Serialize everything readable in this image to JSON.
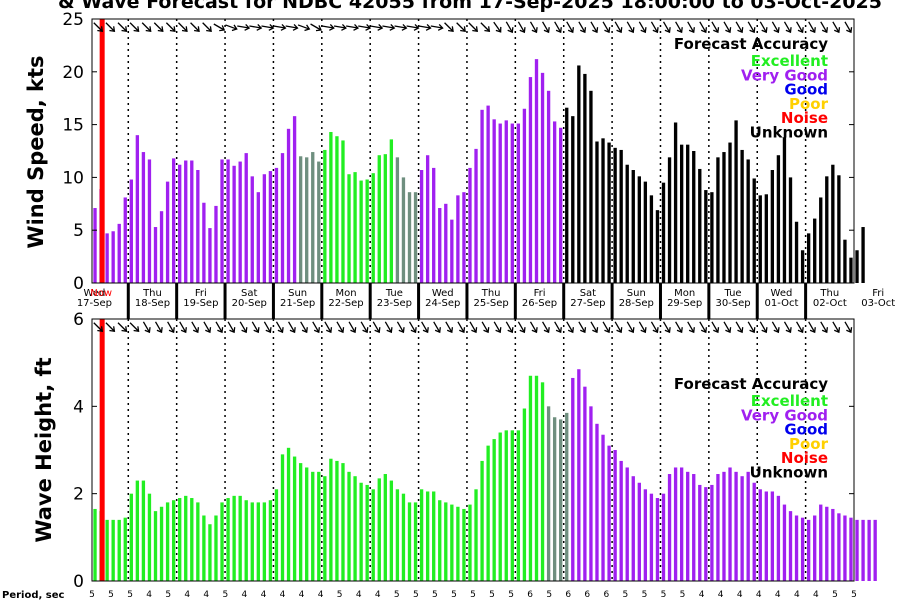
{
  "title": "& Wave Forecast for NDBC 42055 from 17-Sep-2025 18:00:00 to 03-Oct-2025",
  "colors": {
    "Excellent": "#22ee22",
    "Very Good": "#a020f0",
    "Good": "#0000ee",
    "Poor": "#ffd000",
    "Noise": "#ff0000",
    "Unknown": "#000000",
    "Transition": "#6f8f7f",
    "Now": "#ff0000"
  },
  "legend": {
    "title": "Forecast Accuracy",
    "items": [
      "Excellent",
      "Very Good",
      "Good",
      "Poor",
      "Noise",
      "Unknown"
    ]
  },
  "day_labels": [
    {
      "day": "Wed",
      "date": "17-Sep"
    },
    {
      "day": "Thu",
      "date": "18-Sep"
    },
    {
      "day": "Fri",
      "date": "19-Sep"
    },
    {
      "day": "Sat",
      "date": "20-Sep"
    },
    {
      "day": "Sun",
      "date": "21-Sep"
    },
    {
      "day": "Mon",
      "date": "22-Sep"
    },
    {
      "day": "Tue",
      "date": "23-Sep"
    },
    {
      "day": "Wed",
      "date": "24-Sep"
    },
    {
      "day": "Thu",
      "date": "25-Sep"
    },
    {
      "day": "Fri",
      "date": "26-Sep"
    },
    {
      "day": "Sat",
      "date": "27-Sep"
    },
    {
      "day": "Sun",
      "date": "28-Sep"
    },
    {
      "day": "Mon",
      "date": "29-Sep"
    },
    {
      "day": "Tue",
      "date": "30-Sep"
    },
    {
      "day": "Wed",
      "date": "01-Oct"
    },
    {
      "day": "Thu",
      "date": "02-Oct"
    },
    {
      "day": "Fri",
      "date": "03-Oct"
    }
  ],
  "now_label": "Now",
  "period_label": "Period, sec",
  "period_values": [
    "5",
    "5",
    "5",
    "4",
    "5",
    "4",
    "4",
    "5",
    "4",
    "4",
    "4",
    "4",
    "4",
    "5",
    "4",
    "4",
    "5",
    "5",
    "5",
    "5",
    "5",
    "5",
    "5",
    "6",
    "5",
    "6",
    "6",
    "6",
    "5",
    "5",
    "5",
    "5",
    "4",
    "4",
    "4",
    "4",
    "4",
    "4",
    "4",
    "5",
    "5"
  ],
  "chart_data": [
    {
      "type": "bar",
      "name": "wind",
      "ylabel": "Wind Speed, kts",
      "ylim": [
        0,
        25
      ],
      "yticks": [
        0,
        5,
        10,
        15,
        20,
        25
      ],
      "xlim_days": [
        0,
        15.75
      ],
      "bar_step_hours": 3,
      "values": [
        7.1,
        8.9,
        4.7,
        4.9,
        5.6,
        8.1,
        9.8,
        14.0,
        12.4,
        11.7,
        5.3,
        6.8,
        9.6,
        11.8,
        11.2,
        11.6,
        11.6,
        10.7,
        7.6,
        5.2,
        7.3,
        11.7,
        11.7,
        11.1,
        11.5,
        12.3,
        10.1,
        8.6,
        10.3,
        10.6,
        10.9,
        12.3,
        14.6,
        15.8,
        12.0,
        11.9,
        12.4,
        11.5,
        12.6,
        14.3,
        13.9,
        13.5,
        10.3,
        10.5,
        9.7,
        9.8,
        10.4,
        12.1,
        12.2,
        13.6,
        11.9,
        10.0,
        8.6,
        8.6,
        10.7,
        12.1,
        10.9,
        7.1,
        7.5,
        6.0,
        8.3,
        8.6,
        10.9,
        12.7,
        16.4,
        16.8,
        15.5,
        15.1,
        15.4,
        15.1,
        15.1,
        16.5,
        19.5,
        21.2,
        19.9,
        18.2,
        15.3,
        14.7,
        16.6,
        15.8,
        20.6,
        19.8,
        18.2,
        13.4,
        13.7,
        13.3,
        12.8,
        12.6,
        11.2,
        10.7,
        10.1,
        9.6,
        8.3,
        6.9,
        9.5,
        11.9,
        15.2,
        13.1,
        13.1,
        12.5,
        10.8,
        8.8,
        8.6,
        11.9,
        12.4,
        13.3,
        15.4,
        12.6,
        11.7,
        9.9,
        8.3,
        8.4,
        10.7,
        12.1,
        13.8,
        10.0,
        5.8,
        3.1,
        4.7,
        6.1,
        8.1,
        10.1,
        11.2,
        10.2,
        4.1,
        2.4,
        3.1,
        5.3
      ],
      "accuracy": [
        "Very Good",
        "Very Good",
        "Very Good",
        "Very Good",
        "Very Good",
        "Very Good",
        "Very Good",
        "Very Good",
        "Very Good",
        "Very Good",
        "Very Good",
        "Very Good",
        "Very Good",
        "Very Good",
        "Very Good",
        "Very Good",
        "Very Good",
        "Very Good",
        "Very Good",
        "Very Good",
        "Very Good",
        "Very Good",
        "Very Good",
        "Very Good",
        "Very Good",
        "Very Good",
        "Very Good",
        "Very Good",
        "Very Good",
        "Very Good",
        "Very Good",
        "Very Good",
        "Very Good",
        "Very Good",
        "Transition",
        "Transition",
        "Transition",
        "Transition",
        "Excellent",
        "Excellent",
        "Excellent",
        "Excellent",
        "Excellent",
        "Excellent",
        "Excellent",
        "Excellent",
        "Excellent",
        "Excellent",
        "Excellent",
        "Excellent",
        "Transition",
        "Transition",
        "Transition",
        "Transition",
        "Very Good",
        "Very Good",
        "Very Good",
        "Very Good",
        "Very Good",
        "Very Good",
        "Very Good",
        "Very Good",
        "Very Good",
        "Very Good",
        "Very Good",
        "Very Good",
        "Very Good",
        "Very Good",
        "Very Good",
        "Very Good",
        "Very Good",
        "Very Good",
        "Very Good",
        "Very Good",
        "Very Good",
        "Very Good",
        "Very Good",
        "Very Good",
        "Unknown",
        "Unknown",
        "Unknown",
        "Unknown",
        "Unknown",
        "Unknown",
        "Unknown",
        "Unknown",
        "Unknown",
        "Unknown",
        "Unknown",
        "Unknown",
        "Unknown",
        "Unknown",
        "Unknown",
        "Unknown",
        "Unknown",
        "Unknown",
        "Unknown",
        "Unknown",
        "Unknown",
        "Unknown",
        "Unknown",
        "Unknown",
        "Unknown",
        "Unknown",
        "Unknown",
        "Unknown",
        "Unknown",
        "Unknown",
        "Unknown",
        "Unknown",
        "Unknown",
        "Unknown",
        "Unknown",
        "Unknown",
        "Unknown",
        "Unknown",
        "Unknown",
        "Unknown",
        "Unknown",
        "Unknown",
        "Unknown",
        "Unknown",
        "Unknown",
        "Unknown",
        "Unknown",
        "Unknown",
        "Unknown",
        "Unknown",
        "Unknown",
        "Unknown"
      ],
      "direction_deg": [
        135,
        135,
        135,
        135,
        135,
        135,
        135,
        135,
        135,
        135,
        135,
        135,
        135,
        135,
        135,
        135,
        135,
        135,
        135,
        135,
        120,
        120,
        110,
        110,
        100,
        100,
        100,
        100,
        100,
        100,
        100,
        100,
        100,
        100,
        110,
        110,
        120,
        120,
        100,
        100,
        100,
        100,
        100,
        100,
        100,
        100,
        100,
        100,
        100,
        100,
        100,
        100,
        100,
        100,
        100,
        100,
        100,
        100,
        135,
        135,
        135,
        135,
        135,
        135,
        135,
        135,
        145,
        145,
        150,
        150,
        150,
        150,
        150,
        150,
        150,
        150,
        150,
        150,
        150,
        150,
        150,
        150,
        150,
        150,
        150,
        150,
        150,
        150,
        150,
        150,
        150,
        150,
        150,
        150,
        150,
        150,
        150,
        150,
        150,
        150,
        150,
        150,
        150,
        150,
        150,
        150,
        150,
        150,
        150,
        150,
        150,
        150,
        150,
        150,
        150,
        150,
        150,
        150,
        150,
        150,
        150,
        150,
        150,
        150,
        150,
        150,
        150,
        150,
        150
      ]
    },
    {
      "type": "bar",
      "name": "wave",
      "ylabel": "Wave Height, ft",
      "ylim": [
        0,
        6
      ],
      "yticks": [
        0,
        2,
        4,
        6
      ],
      "xlim_days": [
        0,
        15.75
      ],
      "bar_step_hours": 3,
      "values": [
        1.65,
        1.6,
        1.4,
        1.4,
        1.4,
        1.45,
        2.0,
        2.3,
        2.3,
        2.0,
        1.6,
        1.7,
        1.8,
        1.85,
        1.9,
        1.95,
        1.9,
        1.8,
        1.5,
        1.3,
        1.5,
        1.8,
        1.9,
        1.95,
        1.95,
        1.85,
        1.8,
        1.8,
        1.8,
        1.85,
        2.1,
        2.9,
        3.05,
        2.85,
        2.7,
        2.6,
        2.5,
        2.5,
        2.4,
        2.8,
        2.75,
        2.7,
        2.5,
        2.4,
        2.25,
        2.2,
        2.1,
        2.35,
        2.45,
        2.3,
        2.1,
        2.0,
        1.8,
        1.8,
        2.1,
        2.05,
        2.05,
        1.85,
        1.8,
        1.75,
        1.7,
        1.65,
        1.75,
        2.1,
        2.75,
        3.1,
        3.25,
        3.4,
        3.45,
        3.45,
        3.45,
        3.95,
        4.7,
        4.7,
        4.55,
        4.0,
        3.75,
        3.7,
        3.85,
        4.65,
        4.85,
        4.45,
        4.0,
        3.6,
        3.35,
        3.1,
        3.0,
        2.75,
        2.6,
        2.4,
        2.25,
        2.1,
        2.0,
        1.9,
        2.0,
        2.45,
        2.6,
        2.6,
        2.5,
        2.45,
        2.2,
        2.15,
        2.2,
        2.45,
        2.5,
        2.6,
        2.5,
        2.4,
        2.5,
        2.25,
        2.1,
        2.05,
        2.05,
        1.95,
        1.75,
        1.6,
        1.5,
        1.45,
        1.4,
        1.5,
        1.75,
        1.7,
        1.65,
        1.55,
        1.5,
        1.45,
        1.4,
        1.4,
        1.4,
        1.4
      ],
      "accuracy": [
        "Excellent",
        "Excellent",
        "Excellent",
        "Excellent",
        "Excellent",
        "Excellent",
        "Excellent",
        "Excellent",
        "Excellent",
        "Excellent",
        "Excellent",
        "Excellent",
        "Excellent",
        "Excellent",
        "Excellent",
        "Excellent",
        "Excellent",
        "Excellent",
        "Excellent",
        "Excellent",
        "Excellent",
        "Excellent",
        "Excellent",
        "Excellent",
        "Excellent",
        "Excellent",
        "Excellent",
        "Excellent",
        "Excellent",
        "Excellent",
        "Excellent",
        "Excellent",
        "Excellent",
        "Excellent",
        "Excellent",
        "Excellent",
        "Excellent",
        "Excellent",
        "Excellent",
        "Excellent",
        "Excellent",
        "Excellent",
        "Excellent",
        "Excellent",
        "Excellent",
        "Excellent",
        "Excellent",
        "Excellent",
        "Excellent",
        "Excellent",
        "Excellent",
        "Excellent",
        "Excellent",
        "Excellent",
        "Excellent",
        "Excellent",
        "Excellent",
        "Excellent",
        "Excellent",
        "Excellent",
        "Excellent",
        "Excellent",
        "Excellent",
        "Excellent",
        "Excellent",
        "Excellent",
        "Excellent",
        "Excellent",
        "Excellent",
        "Excellent",
        "Excellent",
        "Excellent",
        "Excellent",
        "Excellent",
        "Excellent",
        "Transition",
        "Transition",
        "Transition",
        "Transition",
        "Very Good",
        "Very Good",
        "Very Good",
        "Very Good",
        "Very Good",
        "Very Good",
        "Very Good",
        "Very Good",
        "Very Good",
        "Very Good",
        "Very Good",
        "Very Good",
        "Very Good",
        "Very Good",
        "Very Good",
        "Very Good",
        "Very Good",
        "Very Good",
        "Very Good",
        "Very Good",
        "Very Good",
        "Very Good",
        "Very Good",
        "Very Good",
        "Very Good",
        "Very Good",
        "Very Good",
        "Very Good",
        "Very Good",
        "Very Good",
        "Very Good",
        "Very Good",
        "Very Good",
        "Very Good",
        "Very Good",
        "Very Good",
        "Very Good",
        "Very Good",
        "Very Good",
        "Very Good",
        "Very Good",
        "Very Good",
        "Very Good",
        "Very Good",
        "Very Good",
        "Very Good",
        "Very Good",
        "Very Good",
        "Very Good",
        "Very Good",
        "Very Good",
        "Very Good",
        "Very Good",
        "Very Good",
        "Very Good"
      ],
      "direction_deg": [
        135,
        135,
        135,
        135,
        135,
        135,
        135,
        135,
        150,
        150,
        150,
        150,
        150,
        150,
        150,
        150,
        150,
        150,
        150,
        150,
        150,
        150,
        150,
        150,
        150,
        150,
        150,
        150,
        150,
        150,
        150,
        150,
        150,
        150,
        150,
        150,
        150,
        150,
        150,
        150,
        150,
        150,
        150,
        150,
        150,
        150,
        150,
        150,
        150,
        150,
        150,
        150,
        150,
        150,
        150,
        150,
        150,
        150,
        150,
        150,
        150,
        150,
        150,
        150,
        150,
        150,
        150,
        150,
        150,
        150,
        150,
        150,
        150,
        150,
        150,
        150,
        150,
        150,
        150,
        150,
        150,
        150,
        150,
        150,
        150,
        150,
        150,
        150,
        150,
        150,
        150,
        150,
        150,
        150,
        150,
        150,
        150,
        150,
        150,
        150,
        150,
        150,
        150,
        150,
        150,
        150,
        150,
        150,
        150,
        150,
        150,
        150,
        150,
        150,
        150,
        150,
        150,
        150,
        150,
        150,
        150,
        150,
        150,
        150,
        150,
        150,
        150,
        150,
        150,
        150,
        150
      ]
    }
  ],
  "now_day": 0.21
}
